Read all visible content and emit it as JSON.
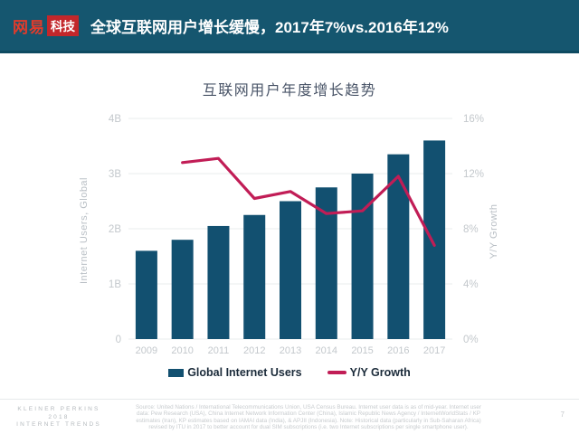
{
  "header": {
    "bg_color": "#15566F",
    "logo_text": "网易",
    "logo_text_color": "#E23B2B",
    "logo_badge": "科技",
    "logo_badge_bg": "#C3272B",
    "title": "全球互联网用户增长缓慢，2017年7%vs.2016年12%"
  },
  "chart_data": {
    "type": "bar+line",
    "title": "互联网用户年度增长趋势",
    "categories": [
      "2009",
      "2010",
      "2011",
      "2012",
      "2013",
      "2014",
      "2015",
      "2016",
      "2017"
    ],
    "series": [
      {
        "name": "Global Internet Users",
        "type": "bar",
        "axis": "left",
        "color": "#125070",
        "values": [
          1.6,
          1.8,
          2.05,
          2.25,
          2.5,
          2.75,
          3.0,
          3.35,
          3.6
        ],
        "unit": "B"
      },
      {
        "name": "Y/Y Growth",
        "type": "line",
        "axis": "right",
        "color": "#C11D56",
        "values": [
          null,
          12.8,
          13.1,
          10.2,
          10.7,
          9.1,
          9.3,
          11.8,
          6.8
        ],
        "unit": "%"
      }
    ],
    "left_axis": {
      "label": "Internet Users, Global",
      "min": 0,
      "max": 4,
      "ticks": [
        "0",
        "1B",
        "2B",
        "3B",
        "4B"
      ]
    },
    "right_axis": {
      "label": "Y/Y Growth",
      "min": 0,
      "max": 16,
      "ticks": [
        "0%",
        "4%",
        "8%",
        "12%",
        "16%"
      ]
    },
    "legend_position": "bottom",
    "grid": true
  },
  "footer": {
    "source_lines": [
      "Source: United Nations / International Telecommunications Union, USA Census Bureau. Internet user data is as of mid-year. Internet user",
      "data: Pew Research (USA), China Internet Network Information Center (China), Islamic Republic News Agency / InternetWorldStats / KP",
      "estimates (Iran), KP estimates based on IAMAI data (India), & APJII (Indonesia). Note: Historical data (particularly in Sub-Saharan Africa)",
      "revised by ITU in 2017 to better account for dual SIM subscriptions (i.e. two Internet subscriptions per single smartphone user)."
    ],
    "brand_lines": [
      "KLEINER PERKINS",
      "2018",
      "INTERNET TRENDS"
    ],
    "page_number": "7"
  }
}
